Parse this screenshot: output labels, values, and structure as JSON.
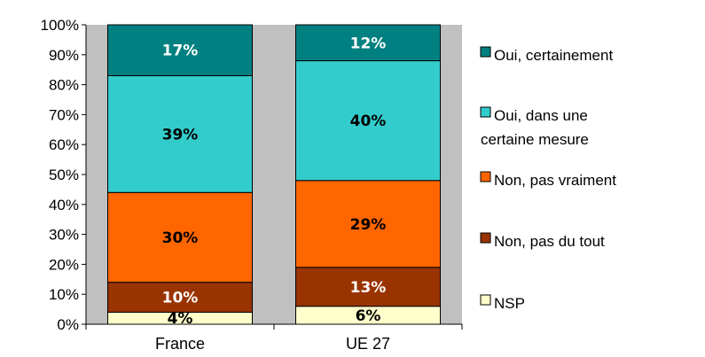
{
  "chart_data": {
    "type": "bar",
    "stacked": true,
    "categories": [
      "France",
      "UE 27"
    ],
    "series": [
      {
        "name": "NSP",
        "values": [
          4,
          6
        ],
        "color": "#FFFFCC",
        "label_color": "#000000"
      },
      {
        "name": "Non, pas du tout",
        "values": [
          10,
          13
        ],
        "color": "#993300",
        "label_color": "#FFFFFF"
      },
      {
        "name": "Non, pas vraiment",
        "values": [
          30,
          29
        ],
        "color": "#FF6600",
        "label_color": "#000000"
      },
      {
        "name": "Oui, dans une certaine mesure",
        "values": [
          39,
          40
        ],
        "color": "#33CCCC",
        "label_color": "#000000"
      },
      {
        "name": "Oui, certainement",
        "values": [
          17,
          12
        ],
        "color": "#008080",
        "label_color": "#FFFFFF"
      }
    ],
    "y_ticks": [
      "0%",
      "10%",
      "20%",
      "30%",
      "40%",
      "50%",
      "60%",
      "70%",
      "80%",
      "90%",
      "100%"
    ],
    "ylim": [
      0,
      100
    ],
    "plot_background": "#C0C0C0",
    "legend_position": "right",
    "legend": [
      {
        "series": 4,
        "lines": [
          "Oui, certainement"
        ]
      },
      {
        "series": 3,
        "lines": [
          "Oui, dans une",
          "certaine mesure"
        ]
      },
      {
        "series": 2,
        "lines": [
          "Non, pas vraiment"
        ]
      },
      {
        "series": 1,
        "lines": [
          "Non, pas du tout"
        ]
      },
      {
        "series": 0,
        "lines": [
          "NSP"
        ]
      }
    ]
  }
}
